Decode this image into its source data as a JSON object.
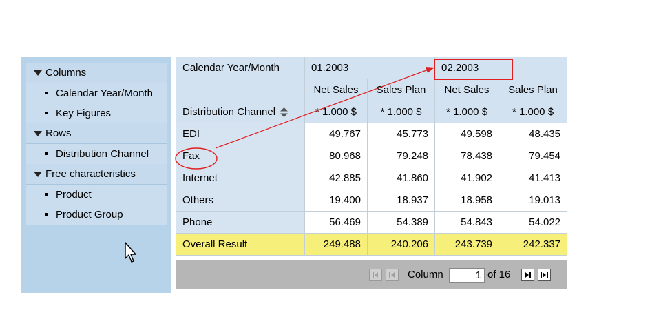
{
  "nav": {
    "sections": [
      {
        "label": "Columns",
        "items": [
          "Calendar Year/Month",
          "Key Figures"
        ]
      },
      {
        "label": "Rows",
        "items": [
          "Distribution Channel"
        ]
      },
      {
        "label": "Free characteristics",
        "items": [
          "Product",
          "Product Group"
        ]
      }
    ]
  },
  "table": {
    "row_header_label": "Calendar Year/Month",
    "periods": [
      "01.2003",
      "02.2003"
    ],
    "key_figures": [
      "Net Sales",
      "Sales Plan",
      "Net Sales",
      "Sales Plan"
    ],
    "dimension_label": "Distribution Channel",
    "units": [
      "* 1.000 $",
      "* 1.000 $",
      "* 1.000 $",
      "* 1.000 $"
    ],
    "rows": [
      {
        "label": "EDI",
        "values": [
          "49.767",
          "45.773",
          "49.598",
          "48.435"
        ]
      },
      {
        "label": "Fax",
        "values": [
          "80.968",
          "79.248",
          "78.438",
          "79.454"
        ]
      },
      {
        "label": "Internet",
        "values": [
          "42.885",
          "41.860",
          "41.902",
          "41.413"
        ]
      },
      {
        "label": "Others",
        "values": [
          "19.400",
          "18.937",
          "18.958",
          "19.013"
        ]
      },
      {
        "label": "Phone",
        "values": [
          "56.469",
          "54.389",
          "54.843",
          "54.022"
        ]
      }
    ],
    "total": {
      "label": "Overall Result",
      "values": [
        "249.488",
        "240.206",
        "243.739",
        "242.337"
      ]
    }
  },
  "pager": {
    "label": "Column",
    "current": "1",
    "of_text": "of 16"
  },
  "colors": {
    "annotation": "#e02020",
    "total_row": "#f6f07a",
    "nav_bg": "#b7d3ea"
  }
}
